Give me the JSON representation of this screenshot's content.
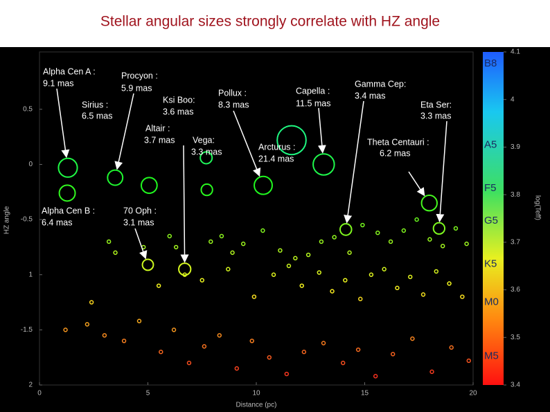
{
  "chart_data": {
    "type": "scatter",
    "title": "Stellar angular sizes strongly correlate with HZ angle",
    "xlabel": "Distance (pc)",
    "ylabel": "HZ angle",
    "y2label": "log(Teff)",
    "xlim": [
      0,
      20
    ],
    "xticks": [
      0,
      5,
      10,
      15,
      20
    ],
    "ylim": [
      -2,
      1.02
    ],
    "yticks": [
      0.5,
      0,
      -0.5,
      {
        "value": -1,
        "label": "1"
      },
      -1.5,
      {
        "value": -2,
        "label": "2"
      }
    ],
    "y2lim": [
      3.4,
      4.1
    ],
    "y2ticks": [
      4.1,
      4,
      3.9,
      3.8,
      3.7,
      3.6,
      3.5,
      3.4
    ],
    "spectral_types": {
      "labels": [
        "B8",
        "A5",
        "F5",
        "G5",
        "K5",
        "M0",
        "M5"
      ],
      "values": [
        4.075,
        3.904,
        3.813,
        3.745,
        3.654,
        3.574,
        3.46
      ]
    },
    "stars": {
      "names": [
        "Alpha Cen A :",
        "Alpha Cen B :",
        "Sirius :",
        "Procyon :",
        "Ksi Boo:",
        "Altair :",
        "Vega:",
        "Pollux :",
        "Capella :",
        "Arcturus :",
        "Gamma Cep:",
        "Theta Centauri :",
        "Eta Ser:",
        "70 Oph :"
      ],
      "x": [
        1.31,
        5.06,
        1.28,
        3.49,
        7.69,
        6.7,
        7.72,
        10.32,
        13.11,
        11.63,
        14.13,
        17.98,
        18.43,
        5.0
      ],
      "values": [
        -0.03,
        -0.19,
        -0.26,
        -0.12,
        0.06,
        -0.95,
        -0.23,
        -0.19,
        0.0,
        0.22,
        -0.59,
        -0.35,
        -0.58,
        -0.91
      ],
      "sizes": [
        9.1,
        6.4,
        6.5,
        5.9,
        3.6,
        3.7,
        3.3,
        8.3,
        11.5,
        21.4,
        3.4,
        6.2,
        3.3,
        3.1
      ],
      "size_labels": [
        "9.1 mas",
        "6.4 mas",
        "6.5 mas",
        "5.9 mas",
        "3.6 mas",
        "3.7 mas",
        "3.3 mas",
        "8.3 mas",
        "11.5 mas",
        "21.4 mas",
        "3.4 mas",
        "6.2 mas",
        "3.3 mas",
        "3.1 mas"
      ]
    },
    "field": {
      "size": 0.3,
      "x": [
        3.2,
        3.5,
        4.8,
        6.0,
        6.3,
        7.9,
        8.4,
        8.9,
        9.4,
        10.3,
        11.1,
        11.8,
        12.4,
        13.0,
        13.6,
        14.3,
        14.9,
        15.6,
        16.2,
        16.8,
        17.4,
        18.0,
        18.6,
        19.2,
        19.7,
        2.4,
        5.5,
        6.7,
        7.5,
        8.7,
        9.9,
        10.8,
        11.5,
        12.1,
        12.9,
        13.5,
        14.1,
        14.8,
        15.3,
        15.9,
        16.5,
        17.1,
        17.7,
        18.3,
        18.9,
        19.5,
        1.2,
        2.2,
        3.0,
        3.9,
        4.6,
        5.6,
        6.2,
        6.9,
        7.6,
        8.3,
        9.1,
        9.8,
        10.6,
        11.4,
        12.2,
        13.1,
        14.0,
        14.7,
        15.5,
        16.3,
        17.2,
        18.1,
        19.0,
        19.8
      ],
      "values": [
        -0.7,
        -0.8,
        -0.75,
        -0.65,
        -0.75,
        -0.7,
        -0.65,
        -0.8,
        -0.72,
        -0.6,
        -0.78,
        -0.85,
        -0.82,
        -0.7,
        -0.66,
        -0.8,
        -0.55,
        -0.62,
        -0.7,
        -0.6,
        -0.5,
        -0.68,
        -0.74,
        -0.58,
        -0.72,
        -1.25,
        -1.1,
        -1.0,
        -1.05,
        -0.95,
        -1.2,
        -1.0,
        -0.92,
        -1.1,
        -0.98,
        -1.15,
        -1.05,
        -1.22,
        -1.0,
        -0.95,
        -1.12,
        -1.02,
        -1.18,
        -0.97,
        -1.08,
        -1.2,
        -1.5,
        -1.45,
        -1.55,
        -1.6,
        -1.42,
        -1.7,
        -1.5,
        -1.8,
        -1.65,
        -1.55,
        -1.85,
        -1.6,
        -1.75,
        -1.9,
        -1.7,
        -1.62,
        -1.8,
        -1.68,
        -1.92,
        -1.72,
        -1.58,
        -1.88,
        -1.66,
        -1.78
      ]
    }
  }
}
